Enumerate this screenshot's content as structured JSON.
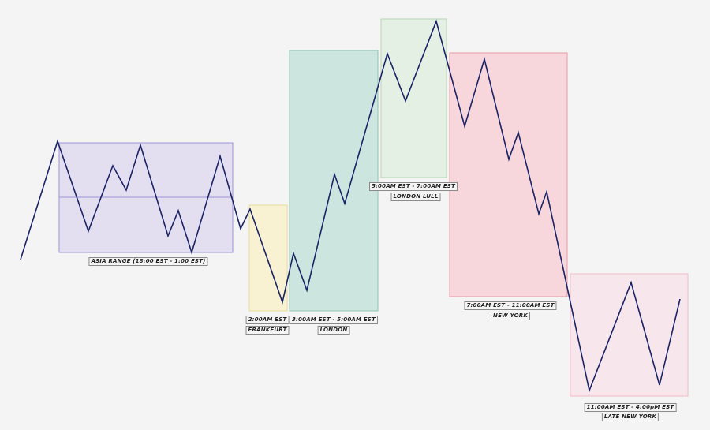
{
  "colors": {
    "background": "#f4f4f4",
    "price_line": "#1a2366",
    "asia": "#e4dff0",
    "asia_border": "#9b93d4",
    "frankfurt": "#f8f2d3",
    "frankfurt_border": "#e9dc99",
    "london": "#cce6df",
    "london_border": "#8fc4b2",
    "london_lull": "#e5f0e5",
    "london_lull_border": "#b6d6b4",
    "new_york": "#f7d6dc",
    "new_york_border": "#e59aa5",
    "late_new_york": "#f7e7ec",
    "late_new_york_border": "#efbcc7"
  },
  "sessions": [
    {
      "id": "asia",
      "name": "",
      "time": "ASIA RANGE (18:00 EST - 1:00 EST)",
      "color_key": "asia"
    },
    {
      "id": "frankfurt",
      "name": "FRANKFURT",
      "time": "2:00AM EST",
      "color_key": "frankfurt"
    },
    {
      "id": "london",
      "name": "LONDON",
      "time": "3:00AM EST - 5:00AM EST",
      "color_key": "london"
    },
    {
      "id": "london-lull",
      "name": "LONDON LULL",
      "time": "5:00AM EST - 7:00AM EST",
      "color_key": "london_lull"
    },
    {
      "id": "new-york",
      "name": "NEW YORK",
      "time": "7:00AM EST - 11:00AM EST",
      "color_key": "new_york"
    },
    {
      "id": "late-new-york",
      "name": "LATE NEW YORK",
      "time": "11:00AM EST - 4:00pM EST",
      "color_key": "late_new_york"
    }
  ]
}
